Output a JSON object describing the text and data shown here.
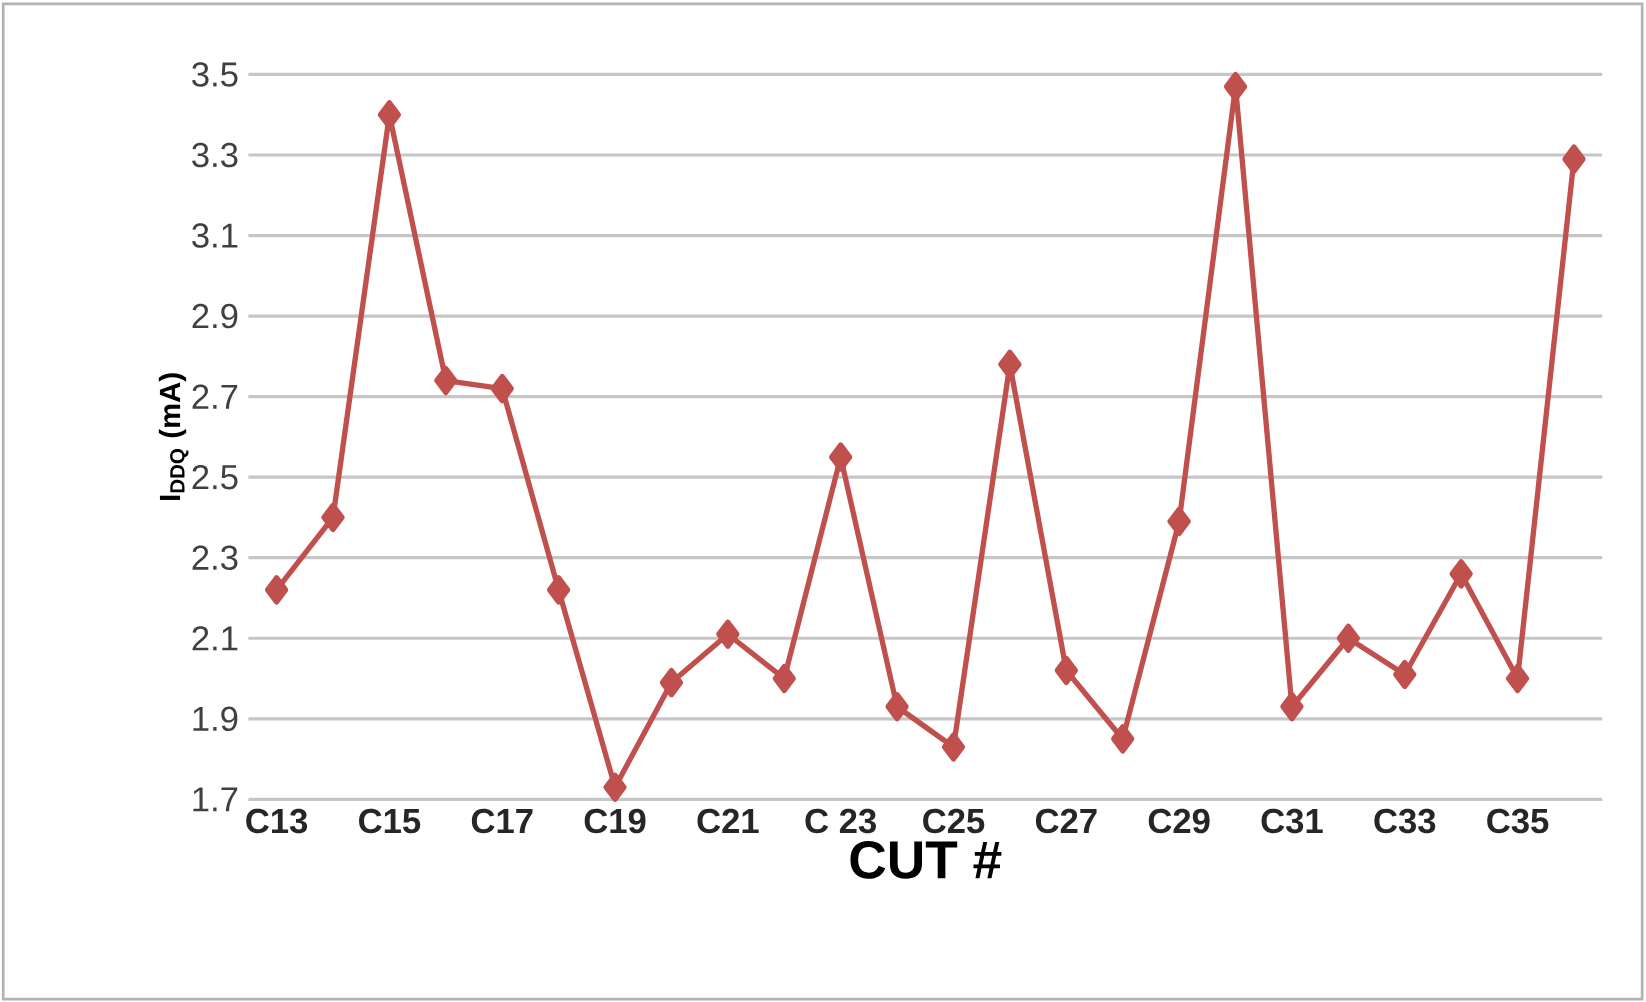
{
  "chart_data": {
    "type": "line",
    "xlabel": "CUT #",
    "ylabel": "I$_{DDQ}$ (mA)",
    "categories": [
      "C13",
      null,
      "C15",
      null,
      "C17",
      null,
      "C19",
      null,
      "C21",
      null,
      "C 23",
      null,
      "C25",
      null,
      "C27",
      null,
      "C29",
      null,
      "C31",
      null,
      "C33",
      null,
      "C35",
      null
    ],
    "series": [
      {
        "color": "#c0504d",
        "values": [
          2.22,
          2.4,
          3.4,
          2.74,
          2.72,
          2.22,
          1.73,
          1.99,
          2.11,
          2.0,
          2.55,
          1.93,
          1.83,
          2.78,
          2.02,
          1.85,
          2.39,
          3.47,
          1.93,
          2.1,
          2.01,
          2.26,
          2.0,
          3.29
        ]
      }
    ],
    "ylim": [
      1.7,
      3.5
    ],
    "yticks": [
      1.7,
      1.9,
      2.1,
      2.3,
      2.5,
      2.7,
      2.9,
      3.1,
      3.3,
      3.5
    ],
    "grid": "y",
    "marker": "diamond",
    "line_style": "solid"
  }
}
